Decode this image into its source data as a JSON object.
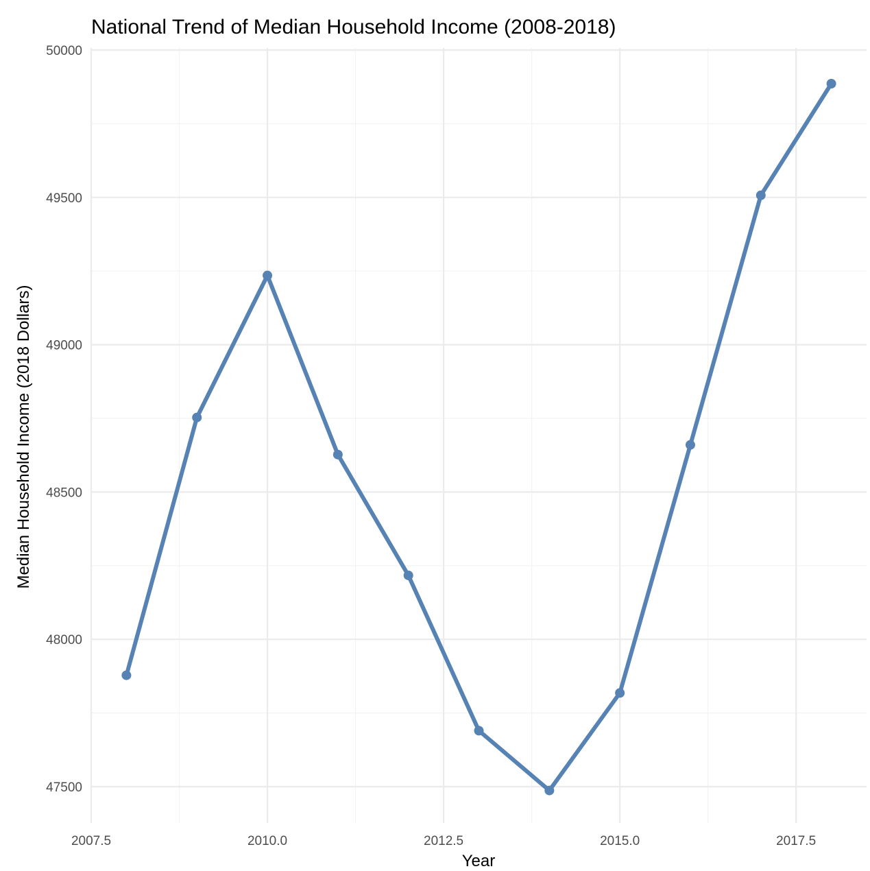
{
  "chart_data": {
    "type": "line",
    "title": "National Trend of Median Household Income (2008-2018)",
    "xlabel": "Year",
    "ylabel": "Median Household Income (2018 Dollars)",
    "xlim": [
      2007.5,
      2018.5
    ],
    "ylim": [
      47500,
      50000
    ],
    "x_ticks": [
      2007.5,
      2010.0,
      2012.5,
      2015.0,
      2017.5
    ],
    "x_tick_labels": [
      "2007.5",
      "2010.0",
      "2012.5",
      "2015.0",
      "2017.5"
    ],
    "y_ticks": [
      47500,
      48000,
      48500,
      49000,
      49500,
      50000
    ],
    "y_tick_labels": [
      "47500",
      "48000",
      "48500",
      "49000",
      "49500",
      "50000"
    ],
    "grid": true,
    "legend": "none",
    "series": [
      {
        "color": "#5682b4",
        "x": [
          2008,
          2009,
          2010,
          2011,
          2012,
          2013,
          2014,
          2015,
          2016,
          2017,
          2018
        ],
        "values": [
          47878,
          48753,
          49235,
          48627,
          48217,
          47690,
          47487,
          47818,
          48660,
          49507,
          49886
        ]
      }
    ]
  }
}
